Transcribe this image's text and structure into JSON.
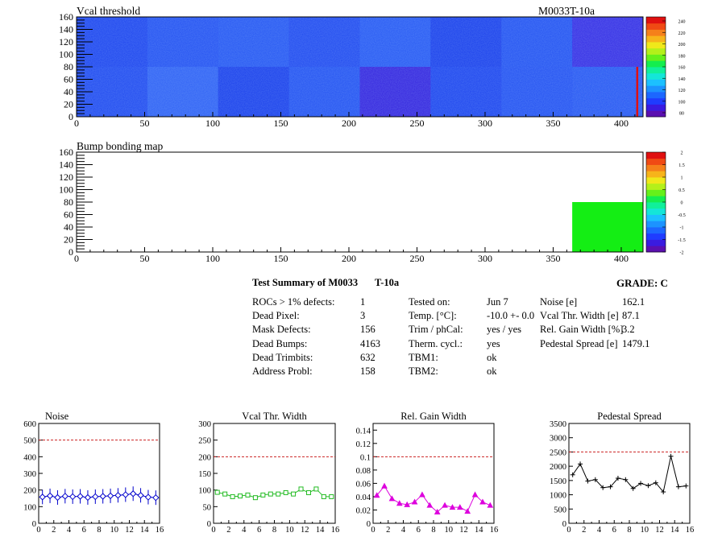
{
  "heat_panels": [
    {
      "title": "Vcal threshold",
      "module_label": "M0033T-10a",
      "y_ticks": [
        "0",
        "20",
        "40",
        "60",
        "80",
        "100",
        "120",
        "140",
        "160"
      ],
      "x_ticks": [
        "0",
        "50",
        "100",
        "150",
        "200",
        "250",
        "300",
        "350",
        "400"
      ],
      "z_ticks": [
        "80",
        "100",
        "120",
        "140",
        "160",
        "180",
        "200",
        "220",
        "240"
      ]
    },
    {
      "title": "Bump bonding map",
      "y_ticks": [
        "0",
        "20",
        "40",
        "60",
        "80",
        "100",
        "120",
        "140",
        "160"
      ],
      "x_ticks": [
        "0",
        "50",
        "100",
        "150",
        "200",
        "250",
        "300",
        "350",
        "400"
      ],
      "z_ticks": [
        "-2",
        "-1.5",
        "-1",
        "-0.5",
        "0",
        "0.5",
        "1",
        "1.5",
        "2"
      ]
    }
  ],
  "summary": {
    "title": "Test Summary of M0033",
    "title_suffix": "T-10a",
    "grade_label": "GRADE:  C",
    "col1": [
      {
        "label": "ROCs > 1% defects:",
        "value": "1"
      },
      {
        "label": "Dead Pixel:",
        "value": "3"
      },
      {
        "label": "Mask Defects:",
        "value": "156"
      },
      {
        "label": "Dead Bumps:",
        "value": "4163"
      },
      {
        "label": "Dead Trimbits:",
        "value": "632"
      },
      {
        "label": "Address Probl:",
        "value": "158"
      }
    ],
    "col2": [
      {
        "label": "Tested on:",
        "value": "Jun 7"
      },
      {
        "label": "Temp. [°C]:",
        "value": "-10.0 +- 0.0"
      },
      {
        "label": "Trim / phCal:",
        "value": "yes / yes"
      },
      {
        "label": "Therm. cycl.:",
        "value": "yes"
      },
      {
        "label": "TBM1:",
        "value": "ok"
      },
      {
        "label": "TBM2:",
        "value": "ok"
      }
    ],
    "col3": [
      {
        "label": "Noise [e]",
        "value": "162.1"
      },
      {
        "label": "Vcal Thr. Width [e]",
        "value": "87.1"
      },
      {
        "label": "Rel. Gain Width [%]",
        "value": "3.2"
      },
      {
        "label": "Pedestal Spread [e]",
        "value": "1479.1"
      }
    ]
  },
  "chart_data": [
    {
      "type": "line",
      "title": "Noise",
      "color": "#0000cc",
      "marker": "diamond",
      "ylim": [
        0,
        600
      ],
      "threshold": 500,
      "x_ticks": [
        "0",
        "2",
        "4",
        "6",
        "8",
        "10",
        "12",
        "14",
        "16"
      ],
      "y_ticks": [
        "0",
        "100",
        "200",
        "300",
        "400",
        "500",
        "600"
      ],
      "x": [
        0,
        1,
        2,
        3,
        4,
        5,
        6,
        7,
        8,
        9,
        10,
        11,
        12,
        13,
        14,
        15
      ],
      "values": [
        158,
        165,
        155,
        163,
        160,
        162,
        155,
        160,
        162,
        165,
        168,
        172,
        178,
        168,
        157,
        154
      ]
    },
    {
      "type": "line",
      "title": "Vcal Thr. Width",
      "color": "#22bb22",
      "marker": "square",
      "ylim": [
        0,
        300
      ],
      "threshold": 200,
      "x_ticks": [
        "0",
        "2",
        "4",
        "6",
        "8",
        "10",
        "12",
        "14",
        "16"
      ],
      "y_ticks": [
        "0",
        "50",
        "100",
        "150",
        "200",
        "250",
        "300"
      ],
      "x": [
        0,
        1,
        2,
        3,
        4,
        5,
        6,
        7,
        8,
        9,
        10,
        11,
        12,
        13,
        14,
        15
      ],
      "values": [
        93,
        88,
        80,
        82,
        85,
        77,
        85,
        88,
        88,
        92,
        88,
        103,
        92,
        103,
        80,
        80
      ]
    },
    {
      "type": "line",
      "title": "Rel. Gain Width",
      "color": "#dd00dd",
      "marker": "triangle",
      "ylim": [
        0,
        0.15
      ],
      "threshold": 0.1,
      "x_ticks": [
        "0",
        "2",
        "4",
        "6",
        "8",
        "10",
        "12",
        "14",
        "16"
      ],
      "y_ticks": [
        "0",
        "0.02",
        "0.04",
        "0.06",
        "0.08",
        "0.1",
        "0.12",
        "0.14"
      ],
      "x": [
        0,
        1,
        2,
        3,
        4,
        5,
        6,
        7,
        8,
        9,
        10,
        11,
        12,
        13,
        14,
        15
      ],
      "values": [
        0.042,
        0.056,
        0.037,
        0.03,
        0.028,
        0.032,
        0.043,
        0.027,
        0.017,
        0.027,
        0.024,
        0.024,
        0.018,
        0.043,
        0.032,
        0.027
      ]
    },
    {
      "type": "line",
      "title": "Pedestal Spread",
      "color": "#000000",
      "marker": "plus",
      "ylim": [
        0,
        3500
      ],
      "threshold": 2500,
      "x_ticks": [
        "0",
        "2",
        "4",
        "6",
        "8",
        "10",
        "12",
        "14",
        "16"
      ],
      "y_ticks": [
        "0",
        "500",
        "1000",
        "1500",
        "2000",
        "2500",
        "3000",
        "3500"
      ],
      "x": [
        0,
        1,
        2,
        3,
        4,
        5,
        6,
        7,
        8,
        9,
        10,
        11,
        12,
        13,
        14,
        15
      ],
      "values": [
        1700,
        2080,
        1480,
        1530,
        1250,
        1280,
        1580,
        1530,
        1220,
        1400,
        1320,
        1420,
        1100,
        2350,
        1280,
        1310
      ]
    }
  ]
}
